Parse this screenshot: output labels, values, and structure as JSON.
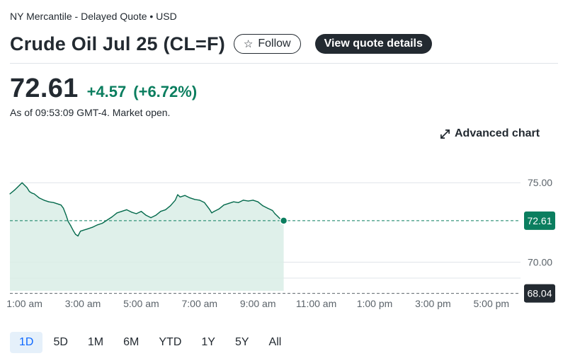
{
  "header": {
    "exchange": "NY Mercantile - Delayed Quote • USD",
    "title": "Crude Oil Jul 25 (CL=F)",
    "follow_icon": "star-icon",
    "follow_label": "Follow",
    "details_label": "View quote details"
  },
  "quote": {
    "price": "72.61",
    "change": "+4.57",
    "percent": "(+6.72%)",
    "as_of": "As of 09:53:09 GMT-4. Market open."
  },
  "advanced_chart": {
    "icon": "expand-arrows-icon",
    "label": "Advanced chart"
  },
  "colors": {
    "positive": "#0b7e5f",
    "line": "#046a4c",
    "fill": "#d9ede6",
    "dark": "#232a31",
    "active_range_bg": "#e5f0fa",
    "active_range_text": "#0f69ff"
  },
  "chart_data": {
    "type": "area",
    "x_tick_labels": [
      "1:00 am",
      "3:00 am",
      "5:00 am",
      "7:00 am",
      "9:00 am",
      "11:00 am",
      "1:00 pm",
      "3:00 pm",
      "5:00 pm"
    ],
    "x_start_time": "12:30 am",
    "x_end_time": "6:00 pm",
    "last_time": "9:53 am",
    "ylim": [
      69.0,
      75.5
    ],
    "y_ticks": [
      "75.00",
      "70.00"
    ],
    "current_label": "72.61",
    "previous_close_label": "68.04",
    "grid": true,
    "series": [
      {
        "values": [
          [
            "12:30 am",
            74.3
          ],
          [
            "12:40 am",
            74.55
          ],
          [
            "12:45 am",
            74.7
          ],
          [
            "12:50 am",
            74.85
          ],
          [
            "12:55 am",
            75.0
          ],
          [
            "1:00 am",
            74.85
          ],
          [
            "1:05 am",
            74.7
          ],
          [
            "1:10 am",
            74.45
          ],
          [
            "1:15 am",
            74.35
          ],
          [
            "1:20 am",
            74.3
          ],
          [
            "1:30 am",
            74.05
          ],
          [
            "1:40 am",
            73.9
          ],
          [
            "1:50 am",
            73.8
          ],
          [
            "2:00 am",
            73.75
          ],
          [
            "2:10 am",
            73.65
          ],
          [
            "2:15 am",
            73.6
          ],
          [
            "2:20 am",
            73.4
          ],
          [
            "2:25 am",
            73.0
          ],
          [
            "2:30 am",
            72.55
          ],
          [
            "2:35 am",
            72.3
          ],
          [
            "2:40 am",
            72.0
          ],
          [
            "2:45 am",
            71.75
          ],
          [
            "2:50 am",
            71.65
          ],
          [
            "2:55 am",
            71.95
          ],
          [
            "3:00 am",
            72.0
          ],
          [
            "3:10 am",
            72.1
          ],
          [
            "3:20 am",
            72.2
          ],
          [
            "3:30 am",
            72.35
          ],
          [
            "3:40 am",
            72.45
          ],
          [
            "3:50 am",
            72.65
          ],
          [
            "4:00 am",
            72.85
          ],
          [
            "4:10 am",
            73.1
          ],
          [
            "4:20 am",
            73.2
          ],
          [
            "4:30 am",
            73.3
          ],
          [
            "4:40 am",
            73.15
          ],
          [
            "4:50 am",
            73.05
          ],
          [
            "5:00 am",
            73.2
          ],
          [
            "5:10 am",
            72.95
          ],
          [
            "5:20 am",
            72.8
          ],
          [
            "5:30 am",
            72.95
          ],
          [
            "5:40 am",
            73.2
          ],
          [
            "5:50 am",
            73.3
          ],
          [
            "6:00 am",
            73.55
          ],
          [
            "6:10 am",
            73.9
          ],
          [
            "6:15 am",
            74.25
          ],
          [
            "6:20 am",
            74.1
          ],
          [
            "6:30 am",
            74.2
          ],
          [
            "6:40 am",
            74.05
          ],
          [
            "6:50 am",
            73.95
          ],
          [
            "7:00 am",
            73.9
          ],
          [
            "7:10 am",
            73.75
          ],
          [
            "7:20 am",
            73.35
          ],
          [
            "7:25 am",
            73.1
          ],
          [
            "7:30 am",
            73.2
          ],
          [
            "7:40 am",
            73.35
          ],
          [
            "7:50 am",
            73.6
          ],
          [
            "8:00 am",
            73.7
          ],
          [
            "8:10 am",
            73.8
          ],
          [
            "8:20 am",
            73.75
          ],
          [
            "8:30 am",
            73.9
          ],
          [
            "8:40 am",
            73.85
          ],
          [
            "8:50 am",
            73.9
          ],
          [
            "9:00 am",
            73.8
          ],
          [
            "9:10 am",
            73.55
          ],
          [
            "9:20 am",
            73.4
          ],
          [
            "9:30 am",
            73.25
          ],
          [
            "9:35 am",
            73.05
          ],
          [
            "9:40 am",
            72.9
          ],
          [
            "9:45 am",
            72.75
          ],
          [
            "9:53 am",
            72.61
          ]
        ]
      }
    ]
  },
  "ranges": [
    {
      "label": "1D",
      "active": true
    },
    {
      "label": "5D",
      "active": false
    },
    {
      "label": "1M",
      "active": false
    },
    {
      "label": "6M",
      "active": false
    },
    {
      "label": "YTD",
      "active": false
    },
    {
      "label": "1Y",
      "active": false
    },
    {
      "label": "5Y",
      "active": false
    },
    {
      "label": "All",
      "active": false
    }
  ]
}
